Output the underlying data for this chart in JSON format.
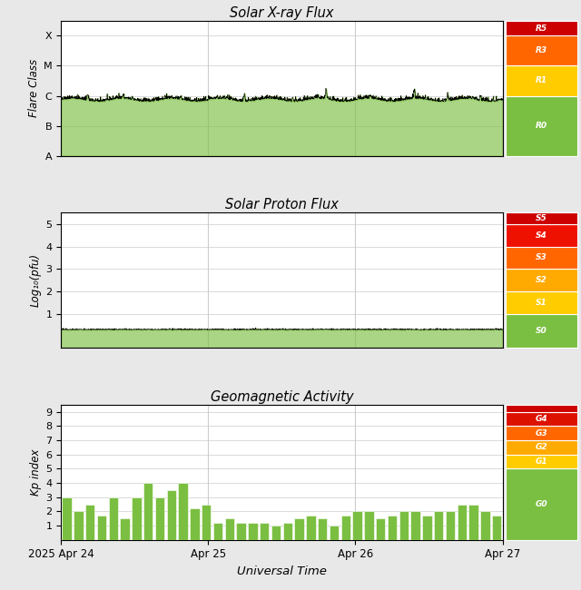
{
  "title_xray": "Solar X-ray Flux",
  "title_proton": "Solar Proton Flux",
  "title_geo": "Geomagnetic Activity",
  "xlabel": "Universal Time",
  "ylabel_xray": "Flare Class",
  "ylabel_proton": "Log₁₀(pfu)",
  "ylabel_geo": "Kp index",
  "xray_labels": [
    "A",
    "B",
    "C",
    "M",
    "X"
  ],
  "xray_colors": {
    "R5": "#cc0000",
    "R3": "#ff6600",
    "R1": "#ffcc00",
    "R0": "#7bbf42"
  },
  "proton_colors": {
    "S5": "#cc0000",
    "S4": "#ee1100",
    "S3": "#ff6600",
    "S2": "#ffaa00",
    "S1": "#ffcc00",
    "S0": "#7bbf42"
  },
  "geo_colors": {
    "G5": "#cc0000",
    "G4": "#dd1100",
    "G3": "#ff6600",
    "G2": "#ffaa00",
    "G1": "#ffcc00",
    "G0": "#7bbf42"
  },
  "geo_bar_values": [
    3,
    2,
    2.5,
    1.7,
    3,
    1.5,
    3,
    4,
    3,
    3.5,
    4,
    2.2,
    2.5,
    1.2,
    1.5,
    1.2,
    1.2,
    1.2,
    1,
    1.2,
    1.5,
    1.7,
    1.5,
    1,
    1.7,
    2,
    2,
    1.5,
    1.7,
    2,
    2,
    1.7,
    2,
    2,
    2.5,
    2.5,
    2,
    1.7
  ],
  "bg_color": "#e8e8e8",
  "plot_bg": "#ffffff",
  "line_color": "#000000",
  "fill_color": "#7bbf42",
  "fill_alpha": 0.65,
  "bar_color": "#7bbf42",
  "bar_edge": "#ffffff",
  "grid_color": "#cccccc",
  "day_ticks": [
    0,
    1,
    2,
    3
  ],
  "day_labels": [
    "2025 Apr 24",
    "Apr 25",
    "Apr 26",
    "Apr 27"
  ]
}
